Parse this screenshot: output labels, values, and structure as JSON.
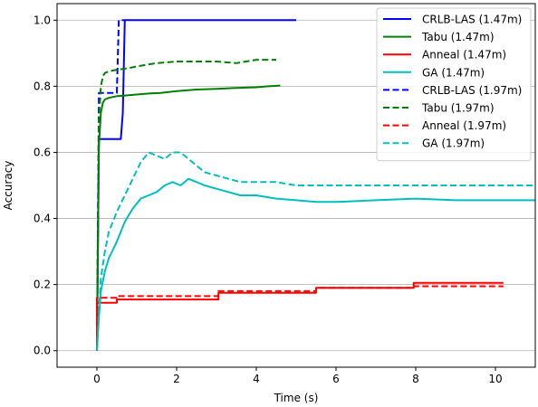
{
  "chart_data": {
    "type": "line",
    "xlabel": "Time (s)",
    "ylabel": "Accuracy",
    "xlim": [
      -1.0,
      11.0
    ],
    "ylim": [
      -0.05,
      1.05
    ],
    "xticks": [
      0,
      2,
      4,
      6,
      8,
      10
    ],
    "yticks": [
      0.0,
      0.2,
      0.4,
      0.6,
      0.8,
      1.0
    ],
    "x_tick_labels": [
      "0",
      "2",
      "4",
      "6",
      "8",
      "10"
    ],
    "y_tick_labels": [
      "0.0",
      "0.2",
      "0.4",
      "0.6",
      "0.8",
      "1.0"
    ],
    "grid": "horizontal",
    "legend_position": "top-right",
    "series": [
      {
        "name": "CRLB-LAS (1.47m)",
        "color": "#0000ff",
        "dash": "solid",
        "x": [
          0.0,
          0.05,
          0.05,
          0.6,
          0.65,
          0.7,
          5.0
        ],
        "y": [
          0.0,
          0.64,
          0.64,
          0.64,
          0.72,
          1.0,
          1.0
        ]
      },
      {
        "name": "Tabu (1.47m)",
        "color": "#008000",
        "dash": "solid",
        "x": [
          0.0,
          0.05,
          0.1,
          0.15,
          0.2,
          0.3,
          0.5,
          0.7,
          1.0,
          1.3,
          1.6,
          2.0,
          2.5,
          3.0,
          3.5,
          4.0,
          4.3,
          4.6
        ],
        "y": [
          0.0,
          0.62,
          0.72,
          0.75,
          0.76,
          0.765,
          0.77,
          0.772,
          0.775,
          0.778,
          0.78,
          0.785,
          0.79,
          0.792,
          0.795,
          0.797,
          0.8,
          0.802
        ]
      },
      {
        "name": "Anneal (1.47m)",
        "color": "#ff0000",
        "dash": "solid",
        "x": [
          0.0,
          0.0,
          0.5,
          0.5,
          3.05,
          3.05,
          5.5,
          5.5,
          7.95,
          7.95,
          10.2
        ],
        "y": [
          0.0,
          0.145,
          0.145,
          0.155,
          0.155,
          0.175,
          0.175,
          0.19,
          0.19,
          0.205,
          0.205
        ]
      },
      {
        "name": "GA (1.47m)",
        "color": "#00bfbf",
        "dash": "solid",
        "x": [
          0.0,
          0.05,
          0.1,
          0.2,
          0.3,
          0.5,
          0.7,
          0.9,
          1.1,
          1.3,
          1.5,
          1.7,
          1.9,
          2.1,
          2.3,
          2.5,
          2.7,
          3.0,
          3.3,
          3.6,
          4.0,
          4.5,
          5.0,
          5.5,
          6.0,
          7.0,
          8.0,
          9.0,
          10.0,
          11.0
        ],
        "y": [
          0.0,
          0.1,
          0.18,
          0.24,
          0.28,
          0.33,
          0.39,
          0.43,
          0.46,
          0.47,
          0.48,
          0.5,
          0.51,
          0.5,
          0.52,
          0.51,
          0.5,
          0.49,
          0.48,
          0.47,
          0.47,
          0.46,
          0.455,
          0.45,
          0.45,
          0.455,
          0.46,
          0.455,
          0.455,
          0.455
        ]
      },
      {
        "name": "CRLB-LAS (1.97m)",
        "color": "#0000ff",
        "dash": "dashed",
        "x": [
          0.0,
          0.05,
          0.05,
          0.5,
          0.55,
          0.7
        ],
        "y": [
          0.0,
          0.78,
          0.78,
          0.78,
          1.0,
          1.0
        ]
      },
      {
        "name": "Tabu (1.97m)",
        "color": "#008000",
        "dash": "dashed",
        "x": [
          0.0,
          0.05,
          0.1,
          0.15,
          0.2,
          0.3,
          0.5,
          0.8,
          1.0,
          1.5,
          2.0,
          2.5,
          3.0,
          3.5,
          4.0,
          4.5
        ],
        "y": [
          0.0,
          0.7,
          0.8,
          0.83,
          0.84,
          0.845,
          0.85,
          0.855,
          0.86,
          0.87,
          0.875,
          0.875,
          0.875,
          0.87,
          0.88,
          0.88
        ]
      },
      {
        "name": "Anneal (1.97m)",
        "color": "#ff0000",
        "dash": "dashed",
        "x": [
          0.0,
          0.0,
          0.5,
          0.5,
          3.05,
          3.05,
          5.5,
          5.5,
          7.95,
          7.95,
          10.2
        ],
        "y": [
          0.0,
          0.16,
          0.16,
          0.165,
          0.165,
          0.18,
          0.18,
          0.19,
          0.19,
          0.195,
          0.195
        ]
      },
      {
        "name": "GA (1.97m)",
        "color": "#00bfbf",
        "dash": "dashed",
        "x": [
          0.0,
          0.05,
          0.1,
          0.2,
          0.3,
          0.5,
          0.7,
          0.9,
          1.1,
          1.3,
          1.5,
          1.7,
          1.9,
          2.1,
          2.3,
          2.5,
          2.7,
          3.0,
          3.3,
          3.6,
          4.0,
          4.5,
          5.0,
          5.5,
          6.0,
          7.0,
          8.0,
          9.0,
          10.0,
          11.0
        ],
        "y": [
          0.0,
          0.12,
          0.22,
          0.3,
          0.36,
          0.42,
          0.47,
          0.52,
          0.57,
          0.6,
          0.59,
          0.58,
          0.6,
          0.6,
          0.58,
          0.56,
          0.54,
          0.53,
          0.52,
          0.51,
          0.51,
          0.51,
          0.5,
          0.5,
          0.5,
          0.5,
          0.5,
          0.5,
          0.5,
          0.5
        ]
      }
    ]
  }
}
